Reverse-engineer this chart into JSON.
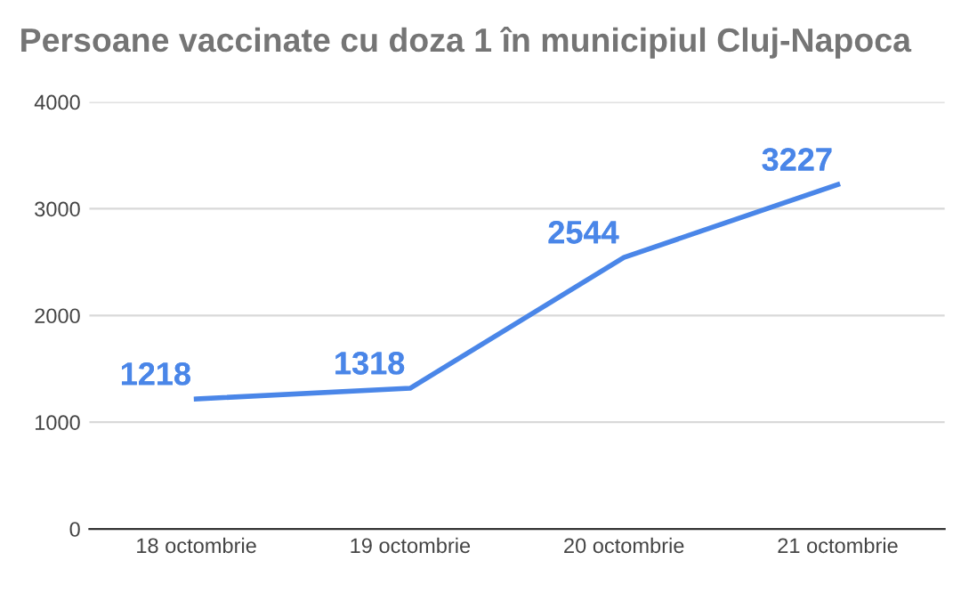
{
  "chart_data": {
    "type": "line",
    "title": "Persoane vaccinate cu doza 1 în municipiul Cluj-Napoca",
    "categories": [
      "18 octombrie",
      "19 octombrie",
      "20 octombrie",
      "21 octombrie"
    ],
    "series": [
      {
        "color": "#4a86e8",
        "values": [
          1218,
          1318,
          2544,
          3227
        ]
      }
    ],
    "ylim": [
      0,
      4000
    ],
    "yticks": [
      0,
      1000,
      2000,
      3000,
      4000
    ],
    "grid": "y",
    "data_labels": true,
    "marker": "none",
    "line_style": "solid"
  }
}
